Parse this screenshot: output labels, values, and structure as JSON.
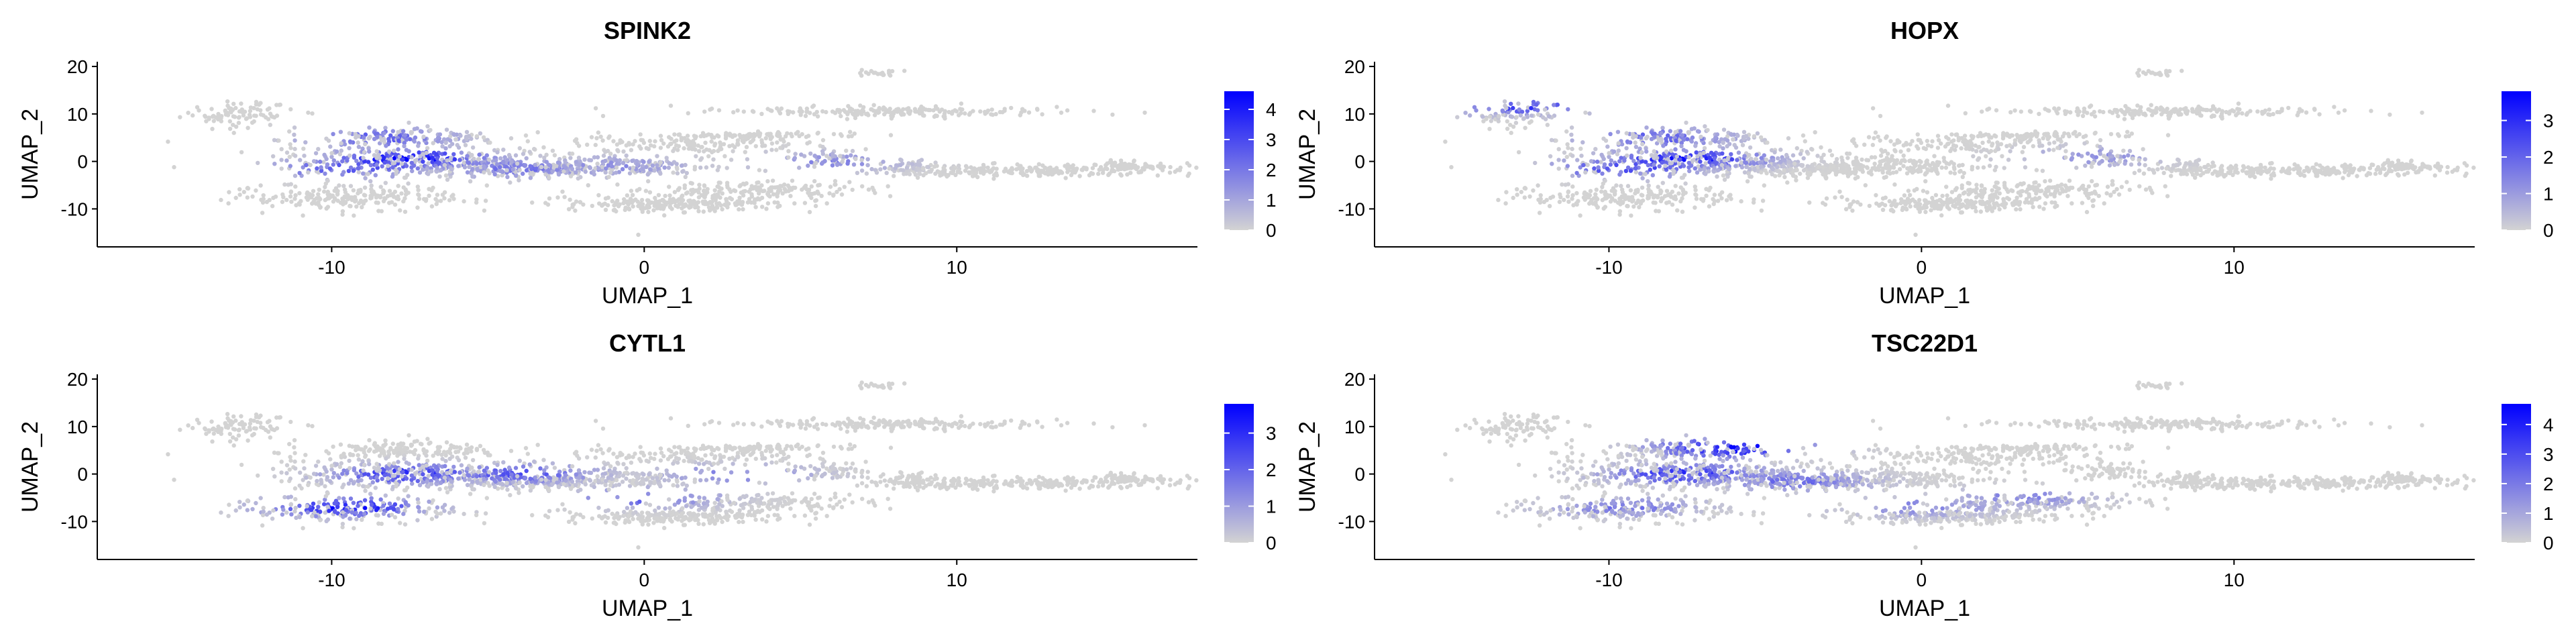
{
  "chart_data": [
    {
      "type": "scatter",
      "title": "SPINK2",
      "xlabel": "UMAP_1",
      "ylabel": "UMAP_2",
      "xlim": [
        -17.5,
        17.7
      ],
      "ylim": [
        -18,
        21
      ],
      "xticks": [
        "-10",
        "0",
        "10"
      ],
      "yticks": [
        "20",
        "10",
        "0",
        "-10"
      ],
      "colorbar": {
        "min": 0,
        "max": 4.6,
        "ticks": [
          "0",
          "1",
          "2",
          "3",
          "4"
        ],
        "low_color": "#d3d3d3",
        "high_color": "#0000ff"
      },
      "grid": false,
      "expression_hotspots": [
        {
          "x": -7.5,
          "y": 0.5,
          "level": 4.2
        },
        {
          "x": -8.5,
          "y": 5,
          "level": 2.5
        },
        {
          "x": -9.5,
          "y": -1.5,
          "level": 2.8
        },
        {
          "x": -4,
          "y": -1.5,
          "level": 2.0
        },
        {
          "x": -1,
          "y": -1,
          "level": 1.5
        },
        {
          "x": 6,
          "y": 0,
          "level": 1.6
        }
      ]
    },
    {
      "type": "scatter",
      "title": "HOPX",
      "xlabel": "UMAP_1",
      "ylabel": "UMAP_2",
      "xlim": [
        -17.5,
        17.7
      ],
      "ylim": [
        -18,
        21
      ],
      "xticks": [
        "-10",
        "0",
        "10"
      ],
      "yticks": [
        "20",
        "10",
        "0",
        "-10"
      ],
      "colorbar": {
        "min": 0,
        "max": 3.8,
        "ticks": [
          "0",
          "1",
          "2",
          "3"
        ],
        "low_color": "#d3d3d3",
        "high_color": "#0000ff"
      },
      "grid": false,
      "expression_hotspots": [
        {
          "x": -7.5,
          "y": 0.5,
          "level": 3.2
        },
        {
          "x": -13,
          "y": 12,
          "level": 3.0
        },
        {
          "x": -8.5,
          "y": 5,
          "level": 2.0
        },
        {
          "x": -9.5,
          "y": -1.5,
          "level": 2.5
        },
        {
          "x": 5.5,
          "y": 1,
          "level": 1.2
        }
      ]
    },
    {
      "type": "scatter",
      "title": "CYTL1",
      "xlabel": "UMAP_1",
      "ylabel": "UMAP_2",
      "xlim": [
        -17.5,
        17.7
      ],
      "ylim": [
        -18,
        21
      ],
      "xticks": [
        "-10",
        "0",
        "10"
      ],
      "yticks": [
        "20",
        "10",
        "0",
        "-10"
      ],
      "colorbar": {
        "min": 0,
        "max": 3.8,
        "ticks": [
          "0",
          "1",
          "2",
          "3"
        ],
        "low_color": "#d3d3d3",
        "high_color": "#0000ff"
      },
      "grid": false,
      "expression_hotspots": [
        {
          "x": -9.5,
          "y": -7,
          "level": 3.2
        },
        {
          "x": -7.5,
          "y": 0,
          "level": 2.8
        },
        {
          "x": -4,
          "y": 0,
          "level": 2.2
        },
        {
          "x": 0,
          "y": -5,
          "level": 2.0
        },
        {
          "x": 3,
          "y": 0,
          "level": 1.5
        }
      ]
    },
    {
      "type": "scatter",
      "title": "TSC22D1",
      "xlabel": "UMAP_1",
      "ylabel": "UMAP_2",
      "xlim": [
        -17.5,
        17.7
      ],
      "ylim": [
        -18,
        21
      ],
      "xticks": [
        "-10",
        "0",
        "10"
      ],
      "yticks": [
        "20",
        "10",
        "0",
        "-10"
      ],
      "colorbar": {
        "min": 0,
        "max": 4.7,
        "ticks": [
          "0",
          "1",
          "2",
          "3",
          "4"
        ],
        "low_color": "#d3d3d3",
        "high_color": "#0000ff"
      },
      "grid": false,
      "expression_hotspots": [
        {
          "x": -6,
          "y": 5.5,
          "level": 4.3
        },
        {
          "x": -7.5,
          "y": 0,
          "level": 3.5
        },
        {
          "x": -4,
          "y": -1.5,
          "level": 2.2
        },
        {
          "x": 0,
          "y": -7,
          "level": 1.8
        },
        {
          "x": 3,
          "y": -5,
          "level": 1.8
        },
        {
          "x": -9.5,
          "y": -7,
          "level": 2.0
        }
      ]
    }
  ]
}
